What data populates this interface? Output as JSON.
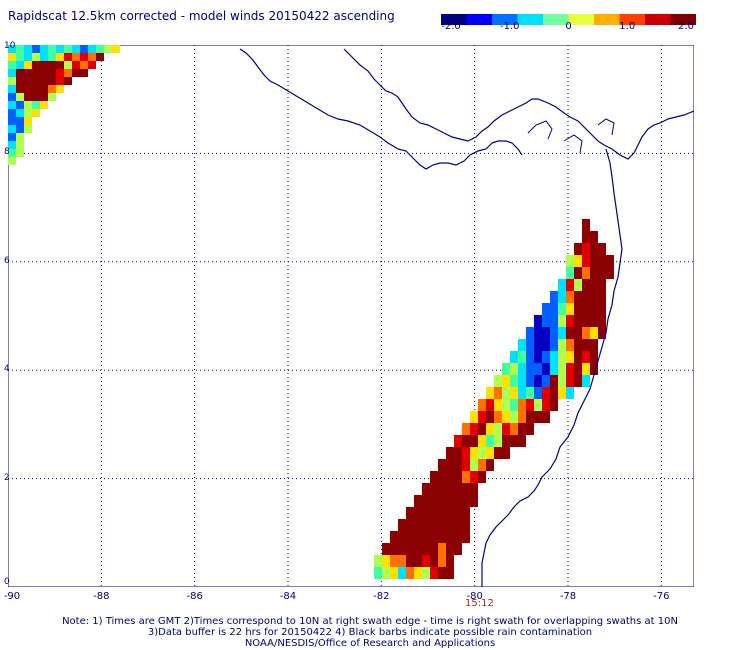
{
  "title": "Rapidscat 12.5km corrected - model winds 20150422 ascending",
  "colorbar": {
    "colors": [
      "#000080",
      "#0000ff",
      "#0070ff",
      "#00e0ff",
      "#70ffa0",
      "#e8ff40",
      "#ffb000",
      "#ff4000",
      "#cc0000",
      "#800000"
    ],
    "ticks": [
      {
        "label": "-2.0",
        "value": -2.0
      },
      {
        "label": "-1.0",
        "value": -1.0
      },
      {
        "label": "0",
        "value": 0
      },
      {
        "label": "1.0",
        "value": 1.0
      },
      {
        "label": "2.0",
        "value": 2.0
      }
    ],
    "range": [
      -2.0,
      2.0
    ]
  },
  "map": {
    "lon_range": [
      -90,
      -75.3
    ],
    "lat_range": [
      0,
      10
    ],
    "x_ticks": [
      "-90",
      "-88",
      "-86",
      "-84",
      "-82",
      "-80",
      "-78",
      "-76"
    ],
    "y_ticks": [
      "10",
      "8",
      "6",
      "4",
      "2",
      "0"
    ],
    "coast_color": "#00008b",
    "grid": "dotted"
  },
  "swath_time": "15:12",
  "notes": {
    "line1": "Note: 1) Times are GMT 2)Times correspond to 10N at right swath edge - time is right swath for overlapping swaths at 10N",
    "line2": "3)Data buffer is 22 hrs for 20150422 4) Black barbs indicate possible rain contamination",
    "line3": "NOAA/NESDIS/Office of Research and Applications"
  }
}
